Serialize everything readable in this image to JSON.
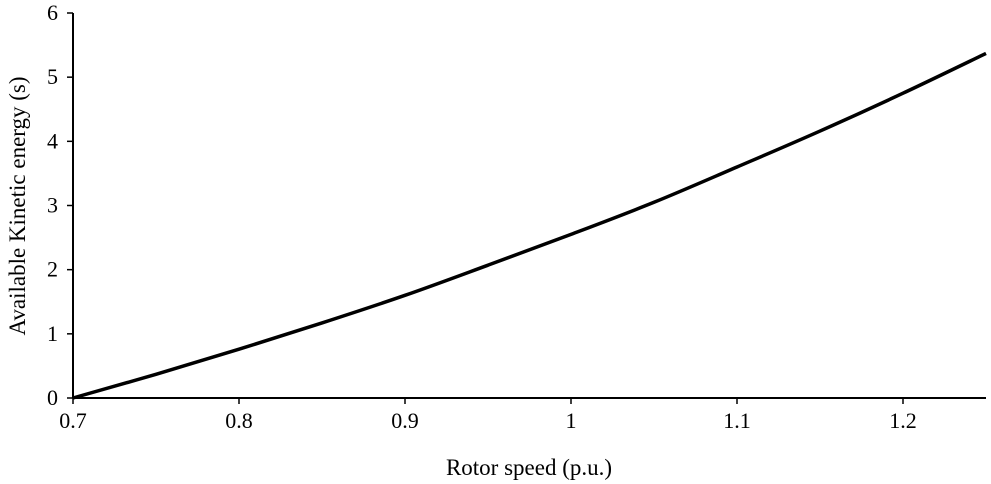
{
  "chart_data": {
    "type": "line",
    "title": "",
    "xlabel": "Rotor speed (p.u.)",
    "ylabel": "Available Kinetic energy (s)",
    "xlim": [
      0.7,
      1.25
    ],
    "ylim": [
      0,
      6
    ],
    "xticks": [
      0.7,
      0.8,
      0.9,
      1,
      1.1,
      1.2
    ],
    "xtick_labels": [
      "0.7",
      "0.8",
      "0.9",
      "1",
      "1.1",
      "1.2"
    ],
    "yticks": [
      0,
      1,
      2,
      3,
      4,
      5,
      6
    ],
    "ytick_labels": [
      "0",
      "1",
      "2",
      "3",
      "4",
      "5",
      "6"
    ],
    "grid": false,
    "legend": "none",
    "series": [
      {
        "color": "#000000",
        "x": [
          0.7,
          0.75,
          0.8,
          0.85,
          0.9,
          0.95,
          1.0,
          1.05,
          1.1,
          1.15,
          1.2,
          1.25
        ],
        "y": [
          0.0,
          0.37,
          0.76,
          1.17,
          1.6,
          2.07,
          2.55,
          3.05,
          3.6,
          4.16,
          4.75,
          5.37
        ]
      }
    ]
  }
}
